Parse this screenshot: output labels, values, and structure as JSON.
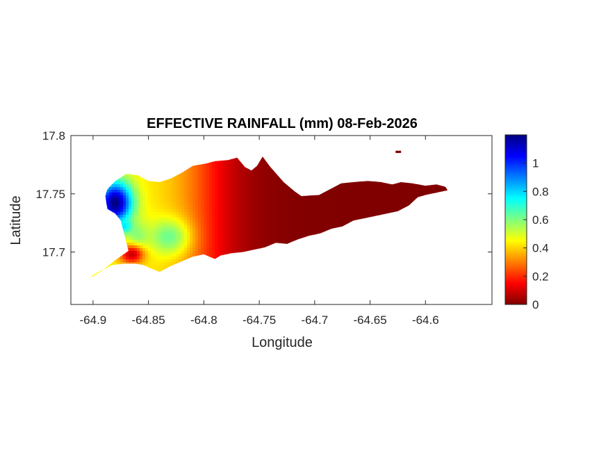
{
  "chart_data": {
    "type": "heatmap",
    "title": "EFFECTIVE RAINFALL (mm) 08-Feb-2026",
    "xlabel": "Longitude",
    "ylabel": "Latitude",
    "xlim": [
      -64.92,
      -64.54
    ],
    "ylim": [
      17.655,
      17.8
    ],
    "xticks": [
      -64.9,
      -64.85,
      -64.8,
      -64.75,
      -64.7,
      -64.65,
      -64.6
    ],
    "xtick_labels": [
      "-64.9",
      "-64.85",
      "-64.8",
      "-64.75",
      "-64.7",
      "-64.65",
      "-64.6"
    ],
    "yticks": [
      17.7,
      17.75,
      17.8
    ],
    "ytick_labels": [
      "17.7",
      "17.75",
      "17.8"
    ],
    "colorbar": {
      "colormap": "jet",
      "range": [
        0,
        1.2
      ],
      "ticks": [
        0,
        0.2,
        0.4,
        0.6,
        0.8,
        1
      ],
      "tick_labels": [
        "0",
        "0.2",
        "0.4",
        "0.6",
        "0.8",
        "1"
      ]
    },
    "colormap_stops": [
      "#000080",
      "#0000ff",
      "#00ffff",
      "#ffff00",
      "#ff0000",
      "#800000"
    ],
    "outline": [
      [
        -64.9,
        17.679
      ],
      [
        -64.892,
        17.684
      ],
      [
        -64.88,
        17.693
      ],
      [
        -64.868,
        17.701
      ],
      [
        -64.872,
        17.716
      ],
      [
        -64.875,
        17.727
      ],
      [
        -64.88,
        17.733
      ],
      [
        -64.887,
        17.737
      ],
      [
        -64.889,
        17.748
      ],
      [
        -64.887,
        17.754
      ],
      [
        -64.88,
        17.761
      ],
      [
        -64.87,
        17.767
      ],
      [
        -64.86,
        17.766
      ],
      [
        -64.85,
        17.761
      ],
      [
        -64.84,
        17.76
      ],
      [
        -64.83,
        17.763
      ],
      [
        -64.82,
        17.768
      ],
      [
        -64.81,
        17.774
      ],
      [
        -64.798,
        17.776
      ],
      [
        -64.79,
        17.778
      ],
      [
        -64.778,
        17.779
      ],
      [
        -64.77,
        17.781
      ],
      [
        -64.763,
        17.773
      ],
      [
        -64.757,
        17.77
      ],
      [
        -64.752,
        17.774
      ],
      [
        -64.747,
        17.782
      ],
      [
        -64.74,
        17.773
      ],
      [
        -64.728,
        17.76
      ],
      [
        -64.718,
        17.752
      ],
      [
        -64.712,
        17.748
      ],
      [
        -64.696,
        17.749
      ],
      [
        -64.686,
        17.754
      ],
      [
        -64.676,
        17.759
      ],
      [
        -64.665,
        17.76
      ],
      [
        -64.652,
        17.761
      ],
      [
        -64.64,
        17.76
      ],
      [
        -64.63,
        17.758
      ],
      [
        -64.622,
        17.76
      ],
      [
        -64.612,
        17.759
      ],
      [
        -64.6,
        17.757
      ],
      [
        -64.59,
        17.758
      ],
      [
        -64.582,
        17.756
      ],
      [
        -64.58,
        17.753
      ],
      [
        -64.59,
        17.751
      ],
      [
        -64.6,
        17.749
      ],
      [
        -64.607,
        17.747
      ],
      [
        -64.615,
        17.74
      ],
      [
        -64.625,
        17.735
      ],
      [
        -64.635,
        17.733
      ],
      [
        -64.645,
        17.731
      ],
      [
        -64.655,
        17.729
      ],
      [
        -64.665,
        17.727
      ],
      [
        -64.675,
        17.722
      ],
      [
        -64.685,
        17.72
      ],
      [
        -64.695,
        17.716
      ],
      [
        -64.705,
        17.714
      ],
      [
        -64.715,
        17.711
      ],
      [
        -64.725,
        17.707
      ],
      [
        -64.735,
        17.708
      ],
      [
        -64.745,
        17.704
      ],
      [
        -64.755,
        17.702
      ],
      [
        -64.765,
        17.7
      ],
      [
        -64.775,
        17.699
      ],
      [
        -64.785,
        17.697
      ],
      [
        -64.79,
        17.694
      ],
      [
        -64.8,
        17.698
      ],
      [
        -64.81,
        17.696
      ],
      [
        -64.82,
        17.692
      ],
      [
        -64.83,
        17.688
      ],
      [
        -64.84,
        17.683
      ],
      [
        -64.848,
        17.686
      ],
      [
        -64.855,
        17.689
      ],
      [
        -64.862,
        17.69
      ],
      [
        -64.872,
        17.69
      ],
      [
        -64.882,
        17.689
      ],
      [
        -64.893,
        17.684
      ],
      [
        -64.902,
        17.679
      ]
    ],
    "islet": [
      [
        -64.627,
        17.787
      ],
      [
        -64.622,
        17.787
      ],
      [
        -64.622,
        17.785
      ],
      [
        -64.627,
        17.785
      ]
    ],
    "field_sources": [
      {
        "lon": -64.88,
        "lat": 17.742,
        "value": 1.2,
        "sx": 0.011,
        "sy": 0.013
      },
      {
        "lon": -64.832,
        "lat": 17.713,
        "value": 0.62,
        "sx": 0.013,
        "sy": 0.011
      },
      {
        "lon": -64.86,
        "lat": 17.712,
        "value": 0.6,
        "sx": 0.007,
        "sy": 0.01
      },
      {
        "lon": -64.872,
        "lat": 17.722,
        "value": 0.78,
        "sx": 0.005,
        "sy": 0.004
      },
      {
        "lon": -64.865,
        "lat": 17.698,
        "value": 0.08,
        "sx": 0.008,
        "sy": 0.006
      }
    ],
    "field_base": {
      "value": 0.45,
      "fade_lon": -64.8,
      "fade_width": 0.018
    }
  }
}
